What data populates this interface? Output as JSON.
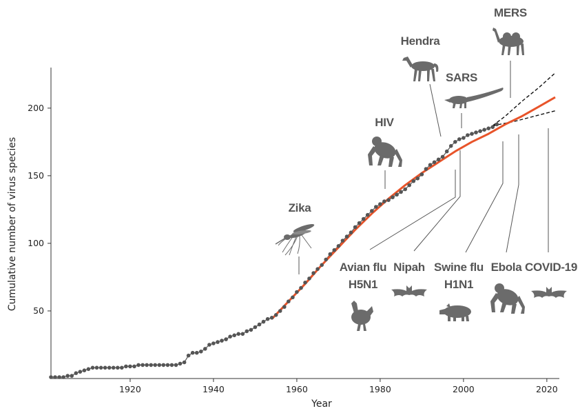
{
  "chart_data": {
    "type": "line",
    "xlabel": "Year",
    "ylabel": "Cumulative number of virus species",
    "xlim": [
      1901,
      2023
    ],
    "ylim": [
      0,
      230
    ],
    "x_ticks": [
      1920,
      1940,
      1960,
      1980,
      2000,
      2020
    ],
    "y_ticks": [
      50,
      100,
      150,
      200
    ],
    "grid": false,
    "legend": "none",
    "series": [
      {
        "kind": "observed-points",
        "color": "#555555",
        "points": [
          [
            1901,
            1
          ],
          [
            1902,
            1
          ],
          [
            1903,
            1
          ],
          [
            1904,
            1
          ],
          [
            1905,
            2
          ],
          [
            1906,
            2
          ],
          [
            1907,
            4
          ],
          [
            1908,
            5
          ],
          [
            1909,
            6
          ],
          [
            1910,
            7
          ],
          [
            1911,
            8
          ],
          [
            1912,
            8
          ],
          [
            1913,
            8
          ],
          [
            1914,
            8
          ],
          [
            1915,
            8
          ],
          [
            1916,
            8
          ],
          [
            1917,
            8
          ],
          [
            1918,
            8
          ],
          [
            1919,
            9
          ],
          [
            1920,
            9
          ],
          [
            1921,
            9
          ],
          [
            1922,
            10
          ],
          [
            1923,
            10
          ],
          [
            1924,
            10
          ],
          [
            1925,
            10
          ],
          [
            1926,
            10
          ],
          [
            1927,
            10
          ],
          [
            1928,
            10
          ],
          [
            1929,
            10
          ],
          [
            1930,
            10
          ],
          [
            1931,
            10
          ],
          [
            1932,
            11
          ],
          [
            1933,
            12
          ],
          [
            1934,
            17
          ],
          [
            1935,
            19
          ],
          [
            1936,
            19
          ],
          [
            1937,
            20
          ],
          [
            1938,
            22
          ],
          [
            1939,
            25
          ],
          [
            1940,
            26
          ],
          [
            1941,
            27
          ],
          [
            1942,
            28
          ],
          [
            1943,
            29
          ],
          [
            1944,
            31
          ],
          [
            1945,
            32
          ],
          [
            1946,
            33
          ],
          [
            1947,
            33
          ],
          [
            1948,
            35
          ],
          [
            1949,
            36
          ],
          [
            1950,
            38
          ],
          [
            1951,
            40
          ],
          [
            1952,
            42
          ],
          [
            1953,
            44
          ],
          [
            1954,
            45
          ],
          [
            1955,
            47
          ],
          [
            1956,
            50
          ],
          [
            1957,
            53
          ],
          [
            1958,
            57
          ],
          [
            1959,
            60
          ],
          [
            1960,
            64
          ],
          [
            1961,
            67
          ],
          [
            1962,
            71
          ],
          [
            1963,
            74
          ],
          [
            1964,
            78
          ],
          [
            1965,
            81
          ],
          [
            1966,
            84
          ],
          [
            1967,
            88
          ],
          [
            1968,
            92
          ],
          [
            1969,
            95
          ],
          [
            1970,
            98
          ],
          [
            1971,
            102
          ],
          [
            1972,
            105
          ],
          [
            1973,
            108
          ],
          [
            1974,
            112
          ],
          [
            1975,
            115
          ],
          [
            1976,
            118
          ],
          [
            1977,
            121
          ],
          [
            1978,
            124
          ],
          [
            1979,
            127
          ],
          [
            1980,
            129
          ],
          [
            1981,
            131
          ],
          [
            1982,
            132
          ],
          [
            1983,
            134
          ],
          [
            1984,
            136
          ],
          [
            1985,
            138
          ],
          [
            1986,
            140
          ],
          [
            1987,
            143
          ],
          [
            1988,
            146
          ],
          [
            1989,
            148
          ],
          [
            1990,
            151
          ],
          [
            1991,
            155
          ],
          [
            1992,
            158
          ],
          [
            1993,
            160
          ],
          [
            1994,
            162
          ],
          [
            1995,
            164
          ],
          [
            1996,
            168
          ],
          [
            1997,
            172
          ],
          [
            1998,
            175
          ],
          [
            1999,
            177
          ],
          [
            2000,
            178
          ],
          [
            2001,
            180
          ],
          [
            2002,
            181
          ],
          [
            2003,
            182
          ],
          [
            2004,
            183
          ],
          [
            2005,
            184
          ],
          [
            2006,
            185
          ],
          [
            2007,
            186
          ],
          [
            2008,
            188
          ]
        ]
      },
      {
        "kind": "fitted-curve",
        "color": "#e8542a",
        "points": [
          [
            1954,
            44
          ],
          [
            1958,
            57
          ],
          [
            1962,
            70
          ],
          [
            1966,
            84
          ],
          [
            1970,
            97
          ],
          [
            1974,
            110
          ],
          [
            1978,
            122
          ],
          [
            1982,
            133
          ],
          [
            1986,
            143
          ],
          [
            1990,
            152
          ],
          [
            1994,
            160
          ],
          [
            1998,
            168
          ],
          [
            2002,
            175
          ],
          [
            2006,
            181
          ],
          [
            2010,
            188
          ],
          [
            2014,
            194
          ],
          [
            2018,
            201
          ],
          [
            2022,
            208
          ]
        ]
      },
      {
        "kind": "upper-bound",
        "color": "#111111",
        "dashed": true,
        "points": [
          [
            2007,
            187
          ],
          [
            2010,
            194
          ],
          [
            2014,
            205
          ],
          [
            2018,
            215
          ],
          [
            2022,
            226
          ]
        ]
      },
      {
        "kind": "lower-bound",
        "color": "#111111",
        "dashed": true,
        "points": [
          [
            2007,
            187
          ],
          [
            2012,
            190
          ],
          [
            2017,
            194
          ],
          [
            2022,
            198
          ]
        ]
      }
    ],
    "annotations": [
      {
        "label": "Zika",
        "year": 1947,
        "icon": "mosquito-icon"
      },
      {
        "label": "HIV",
        "year": 1981,
        "icon": "chimpanzee-icon"
      },
      {
        "label": "Hendra",
        "year": 1994,
        "icon": "horse-icon"
      },
      {
        "label": "SARS",
        "year": 2003,
        "icon": "civet-icon"
      },
      {
        "label": "MERS",
        "year": 2012,
        "icon": "camel-icon"
      },
      {
        "label": "Avian flu\nH5N1",
        "year": 1997,
        "icon": "chicken-icon"
      },
      {
        "label": "Nipah",
        "year": 1998,
        "icon": "bat-icon"
      },
      {
        "label": "Swine flu\nH1N1",
        "year": 2009,
        "icon": "pig-icon"
      },
      {
        "label": "Ebola",
        "year": 2014,
        "icon": "chimpanzee-icon"
      },
      {
        "label": "COVID-19",
        "year": 2019,
        "icon": "bat-icon"
      }
    ]
  }
}
